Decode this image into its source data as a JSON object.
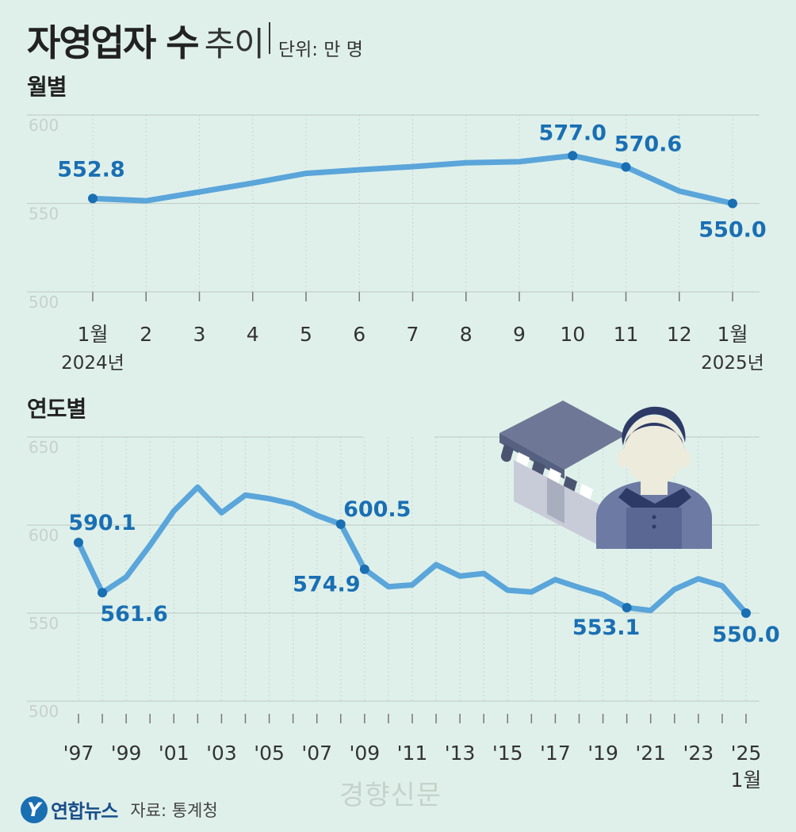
{
  "title": {
    "main": "자영업자 수",
    "sub": "추이",
    "unit": "단위: 만 명"
  },
  "footer": {
    "logo_initial": "Y",
    "logo": "연합뉴스",
    "source": "자료: 통계청"
  },
  "watermark": "경향신문",
  "colors": {
    "background": "#dff0ea",
    "line": "#5aa5da",
    "marker": "#1a6fb3",
    "label": "#1a6fb3",
    "grid": "#c4cfca"
  },
  "icon": "shopkeeper-store-illustration",
  "chart_data": [
    {
      "type": "line",
      "title": "월별",
      "categories": [
        "1월",
        "2",
        "3",
        "4",
        "5",
        "6",
        "7",
        "8",
        "9",
        "10",
        "11",
        "12",
        "1월"
      ],
      "year_labels": [
        {
          "index": 0,
          "text": "2024년"
        },
        {
          "index": 12,
          "text": "2025년"
        }
      ],
      "series": [
        {
          "values": [
            552.8,
            551.5,
            556.5,
            561.5,
            567.0,
            569.0,
            570.8,
            573.0,
            573.6,
            577.0,
            570.6,
            557.0,
            550.0
          ]
        }
      ],
      "marked": [
        {
          "index": 0,
          "label": "552.8"
        },
        {
          "index": 9,
          "label": "577.0"
        },
        {
          "index": 10,
          "label": "570.6"
        },
        {
          "index": 12,
          "label": "550.0"
        }
      ],
      "ylim": [
        500,
        600
      ],
      "yticks": [
        "500",
        "550",
        "600"
      ],
      "grid": true
    },
    {
      "type": "line",
      "title": "연도별",
      "categories": [
        "'97",
        "'98",
        "'99",
        "'00",
        "'01",
        "'02",
        "'03",
        "'04",
        "'05",
        "'06",
        "'07",
        "'08",
        "'09",
        "'10",
        "'11",
        "'12",
        "'13",
        "'14",
        "'15",
        "'16",
        "'17",
        "'18",
        "'19",
        "'20",
        "'21",
        "'22",
        "'23",
        "'24",
        "'25"
      ],
      "tick_labels": [
        "'97",
        "'99",
        "'01",
        "'03",
        "'05",
        "'07",
        "'09",
        "'11",
        "'13",
        "'15",
        "'17",
        "'19",
        "'21",
        "'23",
        "'25"
      ],
      "last_sublabel": "1월",
      "series": [
        {
          "values": [
            590.1,
            561.6,
            570.5,
            588.5,
            608.0,
            621.5,
            607.0,
            617.0,
            615.0,
            612.0,
            605.5,
            600.5,
            574.9,
            565.0,
            566.0,
            577.5,
            571.0,
            572.5,
            563.0,
            562.0,
            569.0,
            564.5,
            560.5,
            553.1,
            551.5,
            563.5,
            569.5,
            565.5,
            550.0
          ]
        }
      ],
      "marked": [
        {
          "index": 0,
          "label": "590.1"
        },
        {
          "index": 1,
          "label": "561.6"
        },
        {
          "index": 11,
          "label": "600.5"
        },
        {
          "index": 12,
          "label": "574.9"
        },
        {
          "index": 23,
          "label": "553.1"
        },
        {
          "index": 28,
          "label": "550.0"
        }
      ],
      "ylim": [
        500,
        650
      ],
      "yticks": [
        "500",
        "550",
        "600",
        "650"
      ],
      "grid": true
    }
  ]
}
